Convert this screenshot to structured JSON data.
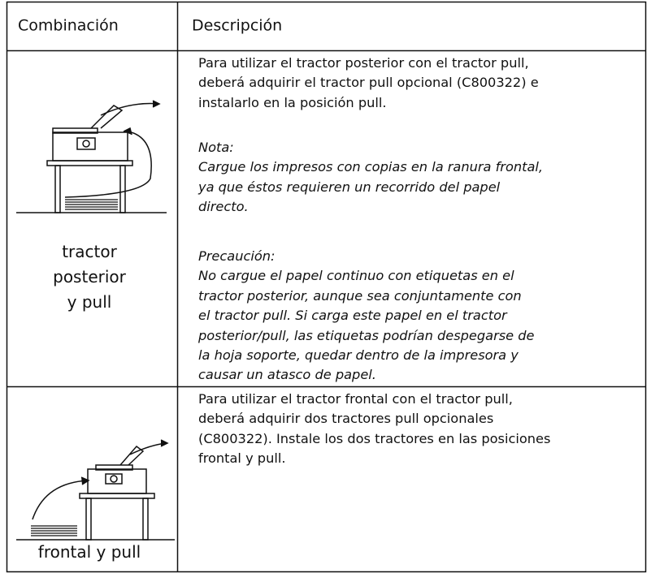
{
  "table": {
    "header": [
      "Combinación",
      "Descripción"
    ],
    "rows": [
      {
        "label": [
          "tractor",
          "posterior",
          "y pull"
        ],
        "paragraphs": [
          {
            "lines": [
              "Para utilizar el tractor posterior con el tractor pull,",
              "deberá adquirir el tractor pull opcional (C800322) e",
              "instalarlo en la posición pull."
            ]
          },
          {
            "title": "Nota:",
            "lines": [
              "Cargue los impresos con copias en la ranura frontal,",
              "ya que éstos requieren un recorrido del papel",
              "directo."
            ]
          },
          {
            "title": "Precaución:",
            "lines": [
              "No cargue el papel continuo con etiquetas en el",
              "tractor posterior, aunque sea conjuntamente con",
              "el tractor pull. Si carga este papel en el tractor",
              "posterior/pull, las etiquetas podrían despegarse de",
              "la hoja soporte, quedar dentro de la impresora y",
              "causar un atasco de papel."
            ]
          }
        ]
      },
      {
        "label": [
          "frontal y pull"
        ],
        "paragraphs": [
          {
            "lines": [
              "Para utilizar el tractor frontal con el tractor pull,",
              "deberá adquirir dos tractores pull opcionales",
              "(C800322). Instale los dos tractores en las posiciones",
              "frontal y pull."
            ]
          }
        ]
      }
    ]
  }
}
